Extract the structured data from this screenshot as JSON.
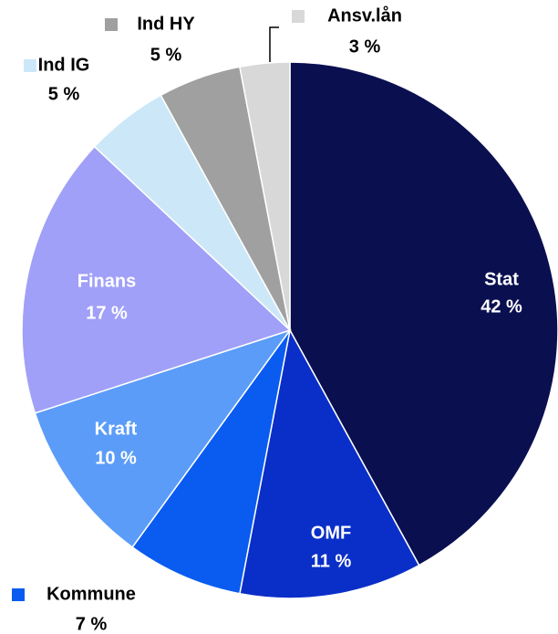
{
  "chart_data": {
    "type": "pie",
    "categories": [
      "Stat",
      "OMF",
      "Kommune",
      "Kraft",
      "Finans",
      "Ind IG",
      "Ind HY",
      "Ansv.lån"
    ],
    "values": [
      42,
      11,
      7,
      10,
      17,
      5,
      5,
      3
    ],
    "value_labels": [
      "42 %",
      "11 %",
      "7 %",
      "10 %",
      "17 %",
      "5 %",
      "5 %",
      "3 %"
    ],
    "colors": [
      "#0a0f50",
      "#0a2fc8",
      "#0a5cf0",
      "#5b9cf8",
      "#a0a0f8",
      "#cce8f8",
      "#a0a0a0",
      "#d8d8d8"
    ]
  }
}
